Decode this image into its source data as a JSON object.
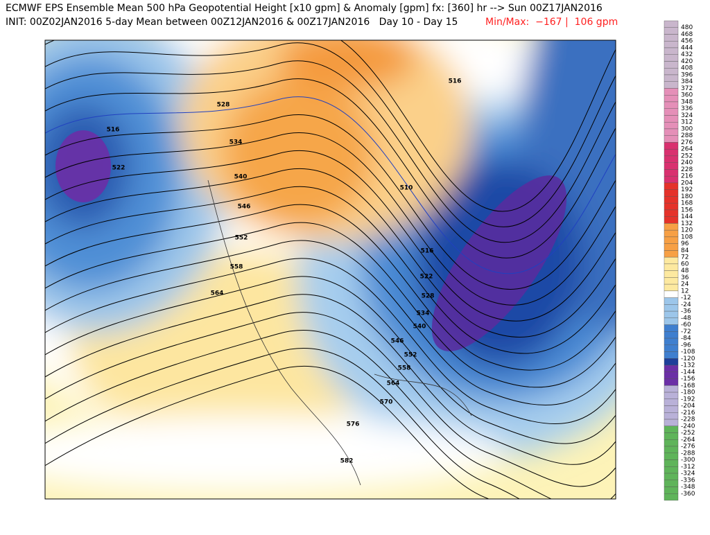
{
  "header": {
    "line1": "ECMWF EPS Ensemble Mean 500 hPa Geopotential Height [x10 gpm] & Anomaly [gpm] fx: [360] hr --> Sun 00Z17JAN2016",
    "line2": "INIT: 00Z02JAN2016 5-day Mean between 00Z12JAN2016 & 00Z17JAN2016   Day 10 - Day 15",
    "minmax": "Min/Max:  −167 |  106 gpm"
  },
  "contour_labels": [
    "516",
    "522",
    "528",
    "534",
    "540",
    "546",
    "552",
    "558",
    "564",
    "516",
    "510",
    "516",
    "522",
    "528",
    "534",
    "540",
    "546",
    "552",
    "558",
    "564",
    "570",
    "576",
    "582"
  ],
  "colorbar": {
    "labels": [
      480,
      468,
      456,
      444,
      432,
      420,
      408,
      396,
      384,
      372,
      360,
      348,
      336,
      324,
      312,
      300,
      288,
      276,
      264,
      252,
      240,
      228,
      216,
      204,
      192,
      180,
      168,
      156,
      144,
      132,
      120,
      108,
      96,
      84,
      72,
      60,
      48,
      36,
      24,
      12,
      -12,
      -24,
      -36,
      -48,
      -60,
      -72,
      -84,
      -96,
      -108,
      -120,
      -132,
      -144,
      -156,
      -168,
      -180,
      -192,
      -204,
      -216,
      -228,
      -240,
      -252,
      -264,
      -276,
      -288,
      -300,
      -312,
      -324,
      -336,
      -348,
      -360
    ]
  }
}
